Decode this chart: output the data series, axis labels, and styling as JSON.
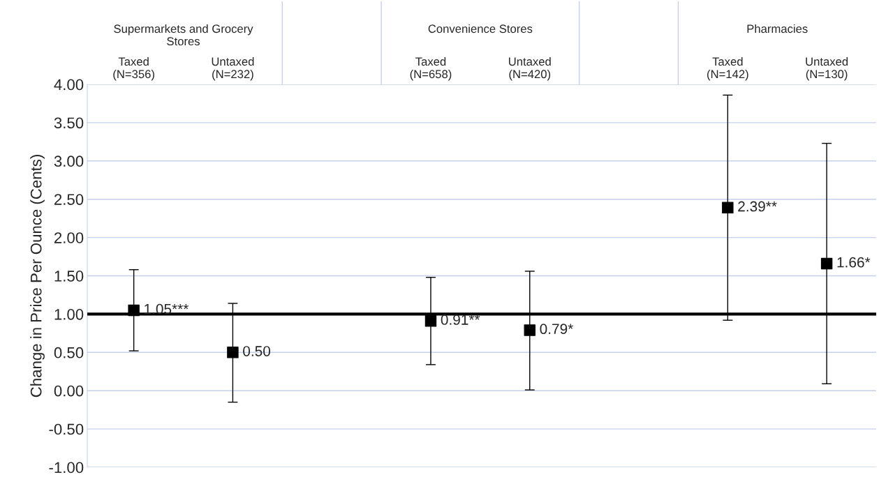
{
  "chart_data": {
    "type": "scatter",
    "ylabel": "Change in Price Per Ounce (Cents)",
    "categories": [
      "Taxed\n(N=356)",
      "Untaxed\n(N=232)",
      null,
      "Taxed\n(N=658)",
      "Untaxed\n(N=420)",
      null,
      "Taxed\n(N=142)",
      "Untaxed\n(N=130)"
    ],
    "values": [
      1.05,
      0.5,
      null,
      0.91,
      0.79,
      null,
      2.39,
      1.66
    ],
    "errors": [
      [
        0.52,
        1.58
      ],
      [
        -0.15,
        1.14
      ],
      null,
      [
        0.34,
        1.48
      ],
      [
        0.01,
        1.56
      ],
      null,
      [
        0.92,
        3.86
      ],
      [
        0.09,
        3.23
      ]
    ],
    "value_labels": [
      "1.05***",
      "0.50",
      null,
      "0.91**",
      "0.79*",
      null,
      "2.39**",
      "1.66*"
    ],
    "color": "#000000",
    "marker": "square",
    "ylim": [
      -1.0,
      4.0
    ],
    "yticks": [
      {
        "value": -1.0,
        "label": "-1.00"
      },
      {
        "value": -0.5,
        "label": "-0.50"
      },
      {
        "value": 0.0,
        "label": "0.00"
      },
      {
        "value": 0.5,
        "label": "0.50"
      },
      {
        "value": 1.0,
        "label": "1.00"
      },
      {
        "value": 1.5,
        "label": "1.50"
      },
      {
        "value": 2.0,
        "label": "2.00"
      },
      {
        "value": 2.5,
        "label": "2.50"
      },
      {
        "value": 3.0,
        "label": "3.00"
      },
      {
        "value": 3.5,
        "label": "3.50"
      },
      {
        "value": 4.0,
        "label": "4.00"
      }
    ],
    "grid": "y",
    "ref_lines": [
      {
        "axis": "y",
        "value": 1.0,
        "color": "#000000"
      }
    ],
    "annotations": [
      "Supermarkets and Grocery\nStores",
      "Convenience Stores",
      "Pharmacies"
    ]
  }
}
